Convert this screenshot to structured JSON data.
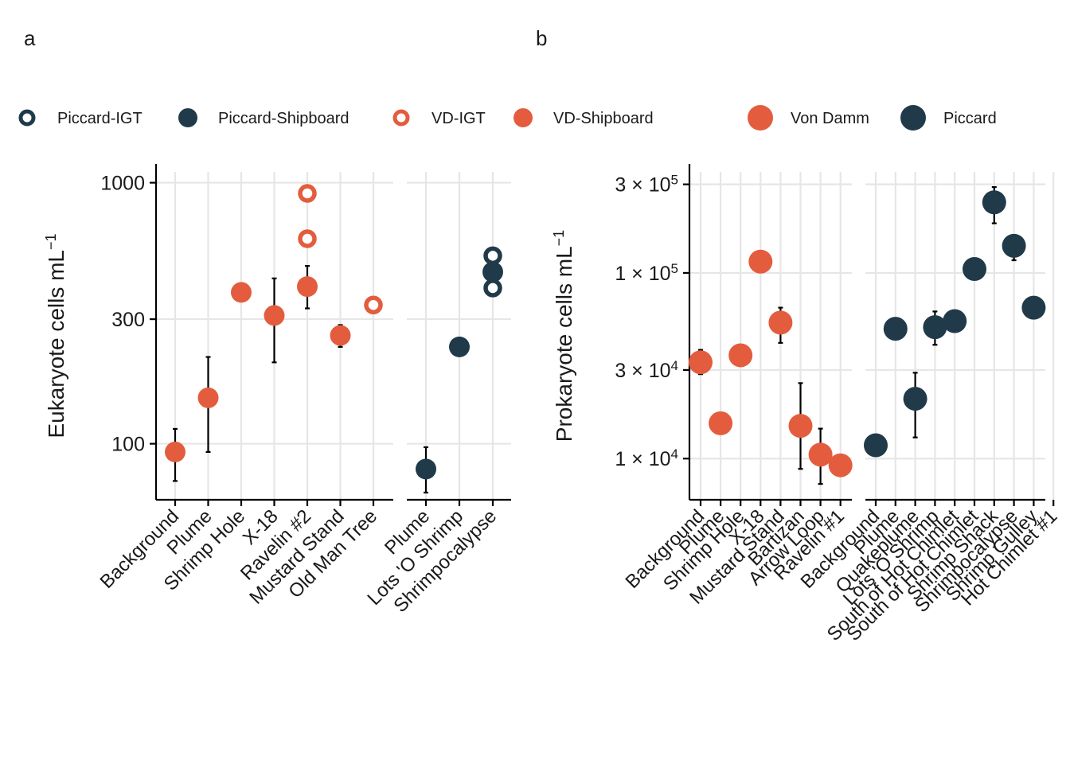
{
  "colors": {
    "piccard": "#203a4a",
    "von_damm": "#e45c3e",
    "grid": "#e6e6e6"
  },
  "panel_tags": {
    "a": "a",
    "b": "b"
  },
  "legend_a": [
    {
      "label": "Piccard-IGT",
      "color": "#203a4a",
      "hollow": true
    },
    {
      "label": "Piccard-Shipboard",
      "color": "#203a4a",
      "hollow": false
    },
    {
      "label": "VD-IGT",
      "color": "#e45c3e",
      "hollow": true
    },
    {
      "label": "VD-Shipboard",
      "color": "#e45c3e",
      "hollow": false
    }
  ],
  "legend_b": [
    {
      "label": "Von Damm",
      "color": "#e45c3e"
    },
    {
      "label": "Piccard",
      "color": "#203a4a"
    }
  ],
  "chart_data": [
    {
      "type": "scatter",
      "panel": "a",
      "ylabel": "Eukaryote cells mL",
      "ylabel_sup": "−1",
      "yscale": "log10",
      "ylim": [
        61,
        1100
      ],
      "yticks": [
        100,
        300,
        1000
      ],
      "ytick_labels": [
        "100",
        "300",
        "1000"
      ],
      "facets": [
        {
          "name": "Von Damm",
          "categories": [
            "Background",
            "Plume",
            "Shrimp Hole",
            "X-18",
            "Ravelin #2",
            "Mustard Stand",
            "Old Man Tree"
          ],
          "points": [
            {
              "category": "Background",
              "y": 93,
              "err": [
                72,
                114
              ],
              "type": "VD-Shipboard"
            },
            {
              "category": "Plume",
              "y": 150,
              "err": [
                93,
                215
              ],
              "type": "VD-Shipboard"
            },
            {
              "category": "Shrimp Hole",
              "y": 380,
              "type": "VD-Shipboard"
            },
            {
              "category": "X-18",
              "y": 310,
              "err": [
                205,
                430
              ],
              "type": "VD-Shipboard"
            },
            {
              "category": "Ravelin #2",
              "y": 910,
              "type": "VD-IGT"
            },
            {
              "category": "Ravelin #2",
              "y": 610,
              "type": "VD-IGT"
            },
            {
              "category": "Ravelin #2",
              "y": 400,
              "err": [
                330,
                480
              ],
              "type": "VD-Shipboard"
            },
            {
              "category": "Mustard Stand",
              "y": 260,
              "err": [
                235,
                285
              ],
              "type": "VD-Shipboard"
            },
            {
              "category": "Old Man Tree",
              "y": 340,
              "type": "VD-IGT"
            }
          ]
        },
        {
          "name": "Piccard",
          "categories": [
            "Plume",
            "Lots 'O Shrimp",
            "Shrimpocalypse"
          ],
          "points": [
            {
              "category": "Plume",
              "y": 80,
              "err": [
                65,
                97
              ],
              "type": "Piccard-Shipboard"
            },
            {
              "category": "Lots 'O Shrimp",
              "y": 235,
              "type": "Piccard-Shipboard"
            },
            {
              "category": "Shrimpocalypse",
              "y": 525,
              "type": "Piccard-IGT"
            },
            {
              "category": "Shrimpocalypse",
              "y": 455,
              "type": "Piccard-Shipboard"
            },
            {
              "category": "Shrimpocalypse",
              "y": 395,
              "type": "Piccard-IGT"
            }
          ]
        }
      ]
    },
    {
      "type": "scatter",
      "panel": "b",
      "ylabel": "Prokaryote cells mL",
      "ylabel_sup": "−1",
      "yscale": "log10",
      "ylim": [
        6000,
        350000
      ],
      "yticks": [
        10000,
        30000,
        100000,
        300000
      ],
      "ytick_labels": [
        {
          "mant": "1",
          "exp": "4"
        },
        {
          "mant": "3",
          "exp": "4"
        },
        {
          "mant": "1",
          "exp": "5"
        },
        {
          "mant": "3",
          "exp": "5"
        }
      ],
      "facets": [
        {
          "name": "Von Damm",
          "categories": [
            "Background",
            "Plume",
            "Shrimp Hole",
            "X-18",
            "Mustard Stand",
            "Bartizan",
            "Arrow Loop",
            "Ravelin #1"
          ],
          "points": [
            {
              "category": "Background",
              "y": 33000,
              "err": [
                28500,
                38500
              ]
            },
            {
              "category": "Plume",
              "y": 15500,
              "err": [
                13700,
                15500
              ]
            },
            {
              "category": "Shrimp Hole",
              "y": 36000
            },
            {
              "category": "X-18",
              "y": 115000
            },
            {
              "category": "Mustard Stand",
              "y": 54000,
              "err": [
                42000,
                65000
              ]
            },
            {
              "category": "Bartizan",
              "y": 15000,
              "err": [
                8800,
                25500
              ]
            },
            {
              "category": "Arrow Loop",
              "y": 10500,
              "err": [
                7300,
                14500
              ]
            },
            {
              "category": "Ravelin #1",
              "y": 9200
            }
          ]
        },
        {
          "name": "Piccard",
          "categories": [
            "Background",
            "Plume",
            "Quakeplume",
            "Lots 'O Shrimp",
            "South of Hot Chimlet",
            "South of Hot Chimlet",
            "Shrimp Shack",
            "Shrimpocalypse",
            "Shrimp Gulley",
            "Hot Chimlet #1"
          ],
          "points": [
            {
              "category_index": 0,
              "y": 11800
            },
            {
              "category_index": 1,
              "y": 50000
            },
            {
              "category_index": 2,
              "y": 21000,
              "err": [
                13000,
                29000
              ]
            },
            {
              "category_index": 3,
              "y": 51000,
              "err": [
                41000,
                62000
              ]
            },
            {
              "category_index": 4,
              "y": 55000,
              "err": [
                49000,
                59000
              ]
            },
            {
              "category_index": 5,
              "y": 105000
            },
            {
              "category_index": 6,
              "y": 240000,
              "err": [
                185000,
                290000
              ]
            },
            {
              "category_index": 7,
              "y": 140000,
              "err": [
                117000,
                160000
              ]
            },
            {
              "category_index": 8,
              "y": 65000
            }
          ]
        }
      ]
    }
  ]
}
